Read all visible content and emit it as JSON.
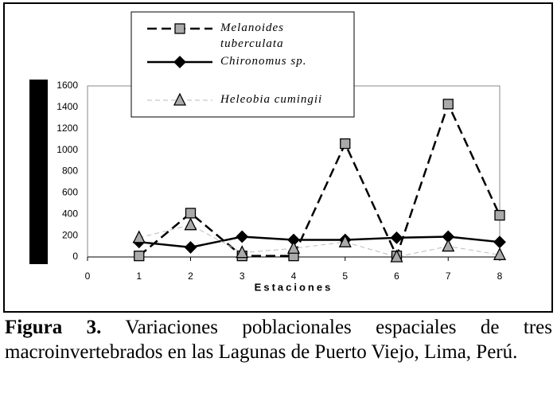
{
  "chart_data": {
    "type": "line",
    "x_label": "Estaciones",
    "x": [
      1,
      2,
      3,
      4,
      5,
      6,
      7,
      8
    ],
    "xlim": [
      0,
      8
    ],
    "xticks": [
      0,
      1,
      2,
      3,
      4,
      5,
      6,
      7,
      8
    ],
    "ylim": [
      0,
      1600
    ],
    "yticks": [
      0,
      200,
      400,
      600,
      800,
      1000,
      1200,
      1400,
      1600
    ],
    "grid": false,
    "series": [
      {
        "name": "Melanoides tuberculata",
        "color": "#000000",
        "marker_color": "#aaaaaa",
        "marker": "square",
        "line_style": "dashed",
        "values": [
          10,
          410,
          10,
          10,
          1060,
          10,
          1430,
          390
        ]
      },
      {
        "name": "Chironomus sp.",
        "color": "#000000",
        "marker_color": "#000000",
        "marker": "diamond",
        "line_style": "solid",
        "values": [
          140,
          90,
          190,
          160,
          160,
          180,
          190,
          140
        ]
      },
      {
        "name": "Heleobia cumingii",
        "color": "#bbbbbb",
        "marker_color": "#aaaaaa",
        "marker": "triangle",
        "line_style": "dotted",
        "values": [
          180,
          300,
          40,
          80,
          140,
          0,
          100,
          20
        ]
      }
    ]
  },
  "caption": {
    "label": "Figura 3.",
    "text": "Variaciones poblacionales espaciales de tres macroinvertebrados en las Lagunas de Puerto Viejo, Lima, Perú."
  }
}
